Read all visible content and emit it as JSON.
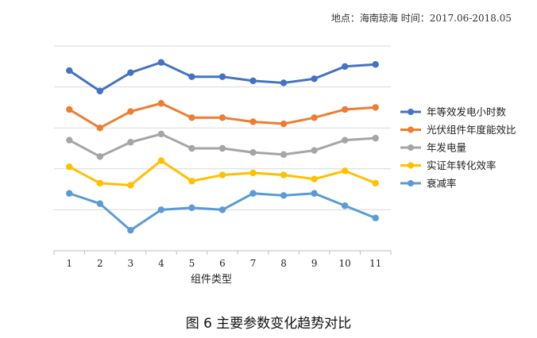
{
  "header": {
    "meta": "地点：海南琼海  时间：2017.06-2018.05"
  },
  "caption": "图 6    主要参数变化趋势对比",
  "chart_data": {
    "type": "line",
    "xlabel": "组件类型",
    "ylabel": "",
    "x": [
      1,
      2,
      3,
      4,
      5,
      6,
      7,
      8,
      9,
      10,
      11
    ],
    "grid": true,
    "legend_position": "right",
    "series": [
      {
        "name": "年等效发电小时数",
        "color": "#4472c4",
        "values": [
          8.8,
          7.8,
          8.7,
          9.2,
          8.5,
          8.5,
          8.3,
          8.2,
          8.4,
          9.0,
          9.1
        ]
      },
      {
        "name": "光伏组件年度能效比",
        "color": "#ed7d31",
        "values": [
          6.9,
          6.0,
          6.8,
          7.2,
          6.5,
          6.5,
          6.3,
          6.2,
          6.5,
          6.9,
          7.0
        ]
      },
      {
        "name": "年发电量",
        "color": "#a5a5a5",
        "values": [
          5.4,
          4.6,
          5.3,
          5.7,
          5.0,
          5.0,
          4.8,
          4.7,
          4.9,
          5.4,
          5.5
        ]
      },
      {
        "name": "实证年转化效率",
        "color": "#ffc000",
        "values": [
          4.1,
          3.3,
          3.2,
          4.4,
          3.4,
          3.7,
          3.8,
          3.7,
          3.5,
          3.9,
          3.3
        ]
      },
      {
        "name": "衰减率",
        "color": "#5b9bd5",
        "values": [
          2.8,
          2.3,
          1.0,
          2.0,
          2.1,
          2.0,
          2.8,
          2.7,
          2.8,
          2.2,
          1.6
        ]
      }
    ],
    "ylim": [
      0,
      10
    ]
  }
}
